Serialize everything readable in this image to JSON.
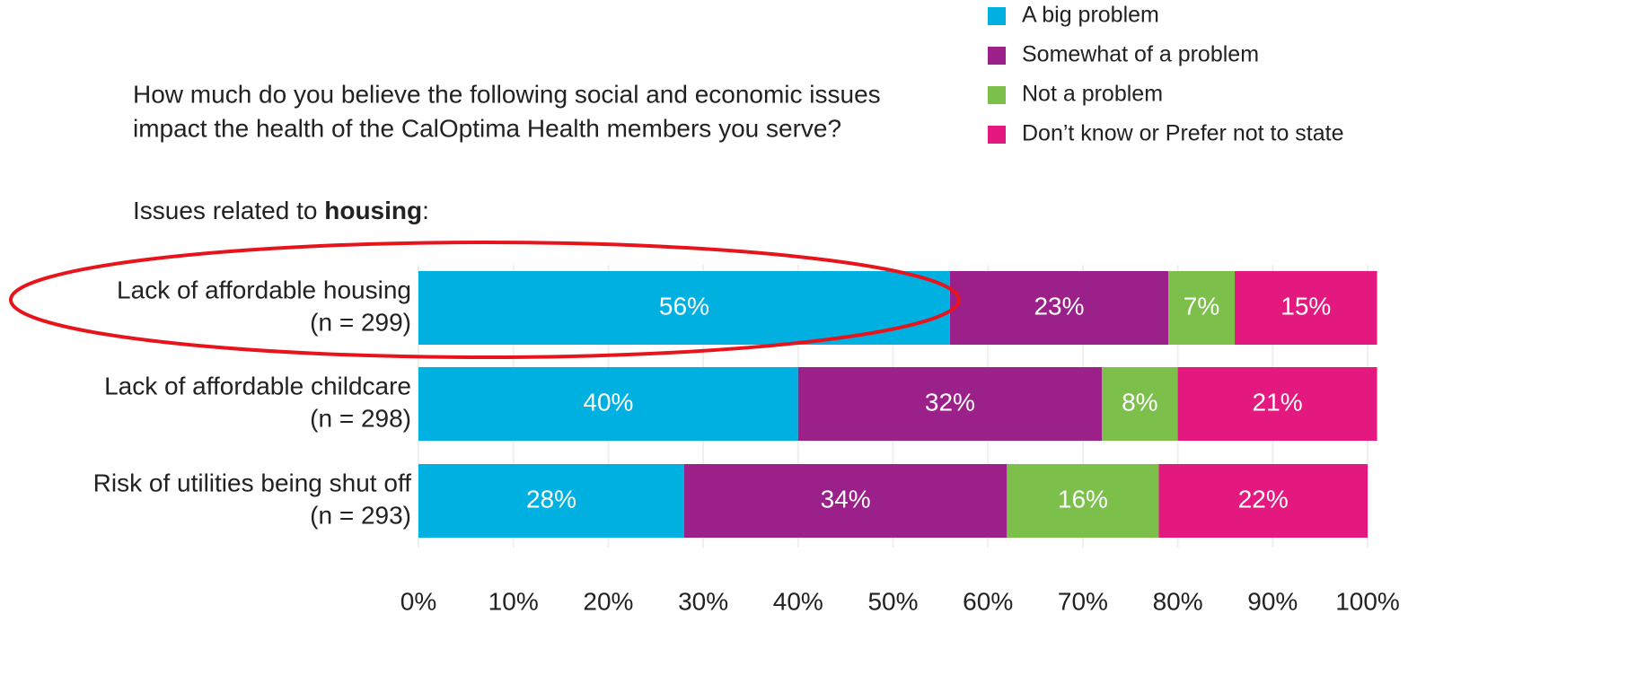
{
  "chart_data": {
    "type": "stacked-barh",
    "title": [
      "How much do you believe the following social and economic issues",
      "impact the health of the CalOptima Health members you serve?"
    ],
    "subtitle": [
      "Issues related to ",
      "housing",
      ":"
    ],
    "categories": [
      "Lack of affordable housing",
      "Lack of affordable childcare",
      "Risk of utilities being shut off"
    ],
    "category_notes": [
      "(n = 299)",
      "(n = 298)",
      "(n = 293)"
    ],
    "series": [
      {
        "name": "A big problem",
        "color": "#00b0e0",
        "values": [
          56,
          40,
          28
        ],
        "value_labels": [
          "56%",
          "40%",
          "28%"
        ]
      },
      {
        "name": "Somewhat of a problem",
        "color": "#9b2089",
        "values": [
          23,
          32,
          34
        ],
        "value_labels": [
          "23%",
          "32%",
          "34%"
        ]
      },
      {
        "name": "Not a problem",
        "color": "#7cc04b",
        "values": [
          7,
          8,
          16
        ],
        "value_labels": [
          "7%",
          "8%",
          "16%"
        ]
      },
      {
        "name": "Don’t know or Prefer not to state",
        "color": "#e4197f",
        "values": [
          15,
          21,
          22
        ],
        "value_labels": [
          "15%",
          "21%",
          "22%"
        ]
      }
    ],
    "xlim": [
      0,
      100
    ],
    "xticks": [
      {
        "value": 0,
        "label": "0%"
      },
      {
        "value": 10,
        "label": "10%"
      },
      {
        "value": 20,
        "label": "20%"
      },
      {
        "value": 30,
        "label": "30%"
      },
      {
        "value": 40,
        "label": "40%"
      },
      {
        "value": 50,
        "label": "50%"
      },
      {
        "value": 60,
        "label": "60%"
      },
      {
        "value": 70,
        "label": "70%"
      },
      {
        "value": 80,
        "label": "80%"
      },
      {
        "value": 90,
        "label": "90%"
      },
      {
        "value": 100,
        "label": "100%"
      }
    ],
    "grid": true,
    "legend": "top-right"
  }
}
